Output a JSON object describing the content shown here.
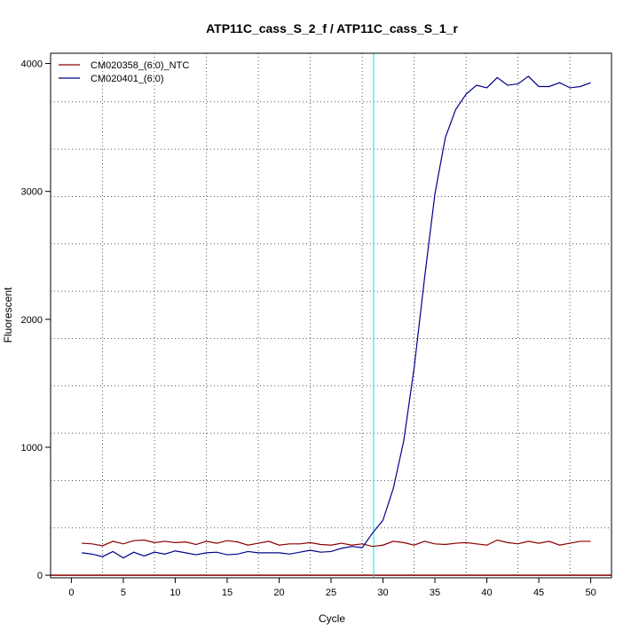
{
  "chart_data": {
    "type": "line",
    "title": "ATP11C_cass_S_2_f / ATP11C_cass_S_1_r",
    "xlabel": "Cycle",
    "ylabel": "Fluorescent",
    "xlim": [
      -2,
      52
    ],
    "ylim": [
      -20,
      4080
    ],
    "x_ticks": [
      0,
      5,
      10,
      15,
      20,
      25,
      30,
      35,
      40,
      45,
      50
    ],
    "y_ticks": [
      0,
      1000,
      2000,
      3000,
      4000
    ],
    "y_minor_grid": [
      0,
      370,
      740,
      1110,
      1480,
      1850,
      2220,
      2590,
      2960,
      3330,
      3700
    ],
    "x_minor_grid": [
      3,
      8,
      13,
      18,
      23,
      28,
      33,
      38,
      43,
      48
    ],
    "grid": true,
    "legend_position": "top-left",
    "threshold_cycle": 29.1,
    "threshold_color": "#00e5ee",
    "baseline_color": "#8b0000",
    "x": [
      1,
      2,
      3,
      4,
      5,
      6,
      7,
      8,
      9,
      10,
      11,
      12,
      13,
      14,
      15,
      16,
      17,
      18,
      19,
      20,
      21,
      22,
      23,
      24,
      25,
      26,
      27,
      28,
      29,
      30,
      31,
      32,
      33,
      34,
      35,
      36,
      37,
      38,
      39,
      40,
      41,
      42,
      43,
      44,
      45,
      46,
      47,
      48,
      49,
      50
    ],
    "series": [
      {
        "name": "CM020358_(6:0)_NTC",
        "color": "#8b0000",
        "values": [
          250,
          245,
          230,
          265,
          245,
          270,
          275,
          255,
          265,
          255,
          260,
          240,
          265,
          250,
          270,
          260,
          235,
          250,
          265,
          235,
          245,
          245,
          255,
          240,
          235,
          250,
          235,
          245,
          225,
          235,
          265,
          255,
          235,
          265,
          245,
          240,
          250,
          255,
          245,
          235,
          275,
          255,
          245,
          265,
          250,
          265,
          235,
          250,
          265,
          265
        ]
      },
      {
        "name": "CM020401_(6:0)",
        "color": "#00008b",
        "values": [
          175,
          165,
          145,
          185,
          135,
          180,
          150,
          180,
          165,
          190,
          175,
          160,
          175,
          180,
          160,
          165,
          185,
          175,
          175,
          175,
          165,
          180,
          195,
          180,
          185,
          210,
          225,
          215,
          330,
          430,
          680,
          1050,
          1620,
          2320,
          2980,
          3420,
          3640,
          3760,
          3830,
          3810,
          3890,
          3830,
          3840,
          3900,
          3820,
          3820,
          3850,
          3810,
          3820,
          3850
        ]
      }
    ]
  }
}
